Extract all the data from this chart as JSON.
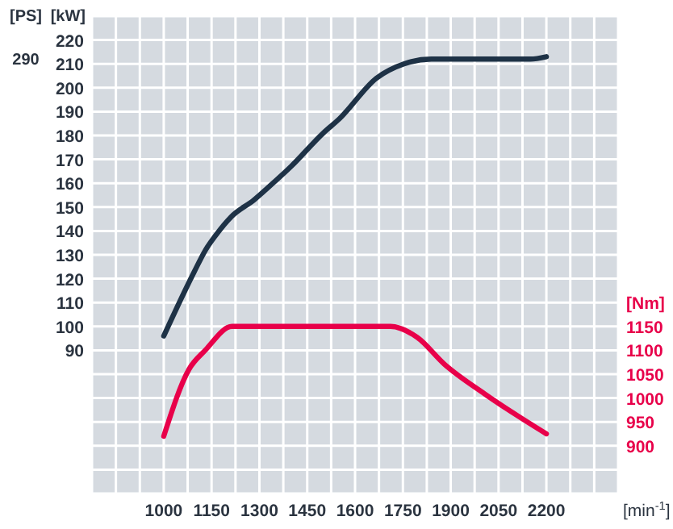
{
  "chart_data": {
    "type": "line",
    "xlabel": "[min$^{-1}$]",
    "ylabel": "[kW]",
    "y2label": "[Nm]",
    "annotations": [
      "[PS]",
      "290"
    ],
    "xlim": [
      775,
      2425
    ],
    "xticks": [
      {
        "value": 775,
        "label": null
      },
      {
        "value": 850,
        "label": null
      },
      {
        "value": 925,
        "label": null
      },
      1000,
      {
        "value": 1075,
        "label": null
      },
      1150,
      {
        "value": 1225,
        "label": null
      },
      1300,
      {
        "value": 1375,
        "label": null
      },
      1450,
      {
        "value": 1525,
        "label": null
      },
      1600,
      {
        "value": 1675,
        "label": null
      },
      1750,
      {
        "value": 1825,
        "label": null
      },
      1900,
      {
        "value": 1975,
        "label": null
      },
      2050,
      {
        "value": 2125,
        "label": null
      },
      2200,
      {
        "value": 2275,
        "label": null
      },
      {
        "value": 2350,
        "label": null
      },
      {
        "value": 2425,
        "label": null
      }
    ],
    "ylim": [
      30,
      230
    ],
    "yticks": [
      {
        "value": 30,
        "label": null
      },
      {
        "value": 40,
        "label": null
      },
      {
        "value": 50,
        "label": null
      },
      {
        "value": 60,
        "label": null
      },
      {
        "value": 70,
        "label": null
      },
      {
        "value": 80,
        "label": null
      },
      90,
      100,
      110,
      120,
      130,
      140,
      150,
      160,
      170,
      180,
      190,
      200,
      210,
      220,
      {
        "value": 230,
        "label": null
      }
    ],
    "y2lim": [
      800,
      1800
    ],
    "y2ticks": [
      900,
      950,
      1000,
      1050,
      1100,
      1150
    ],
    "grid": true,
    "marker": "none",
    "line_style": "solid",
    "series": [
      {
        "color": "#1e3246",
        "x": [
          1000,
          1096,
          1131,
          1162,
          1212,
          1283,
          1334,
          1399,
          1500,
          1551,
          1667,
          1753,
          1839,
          2000,
          2150,
          2200
        ],
        "values": [
          96,
          123,
          132,
          138,
          146,
          153,
          159,
          167,
          181,
          187,
          204,
          210,
          212,
          212,
          212,
          213
        ]
      },
      {
        "color": "#e8004a",
        "axis": "y2",
        "x": [
          1000,
          1079,
          1130,
          1214,
          1400,
          1600,
          1711,
          1795,
          1880,
          2006,
          2107,
          2200
        ],
        "values": [
          920,
          1060,
          1100,
          1150,
          1150,
          1150,
          1150,
          1127,
          1071,
          1009,
          964,
          925
        ]
      }
    ]
  }
}
